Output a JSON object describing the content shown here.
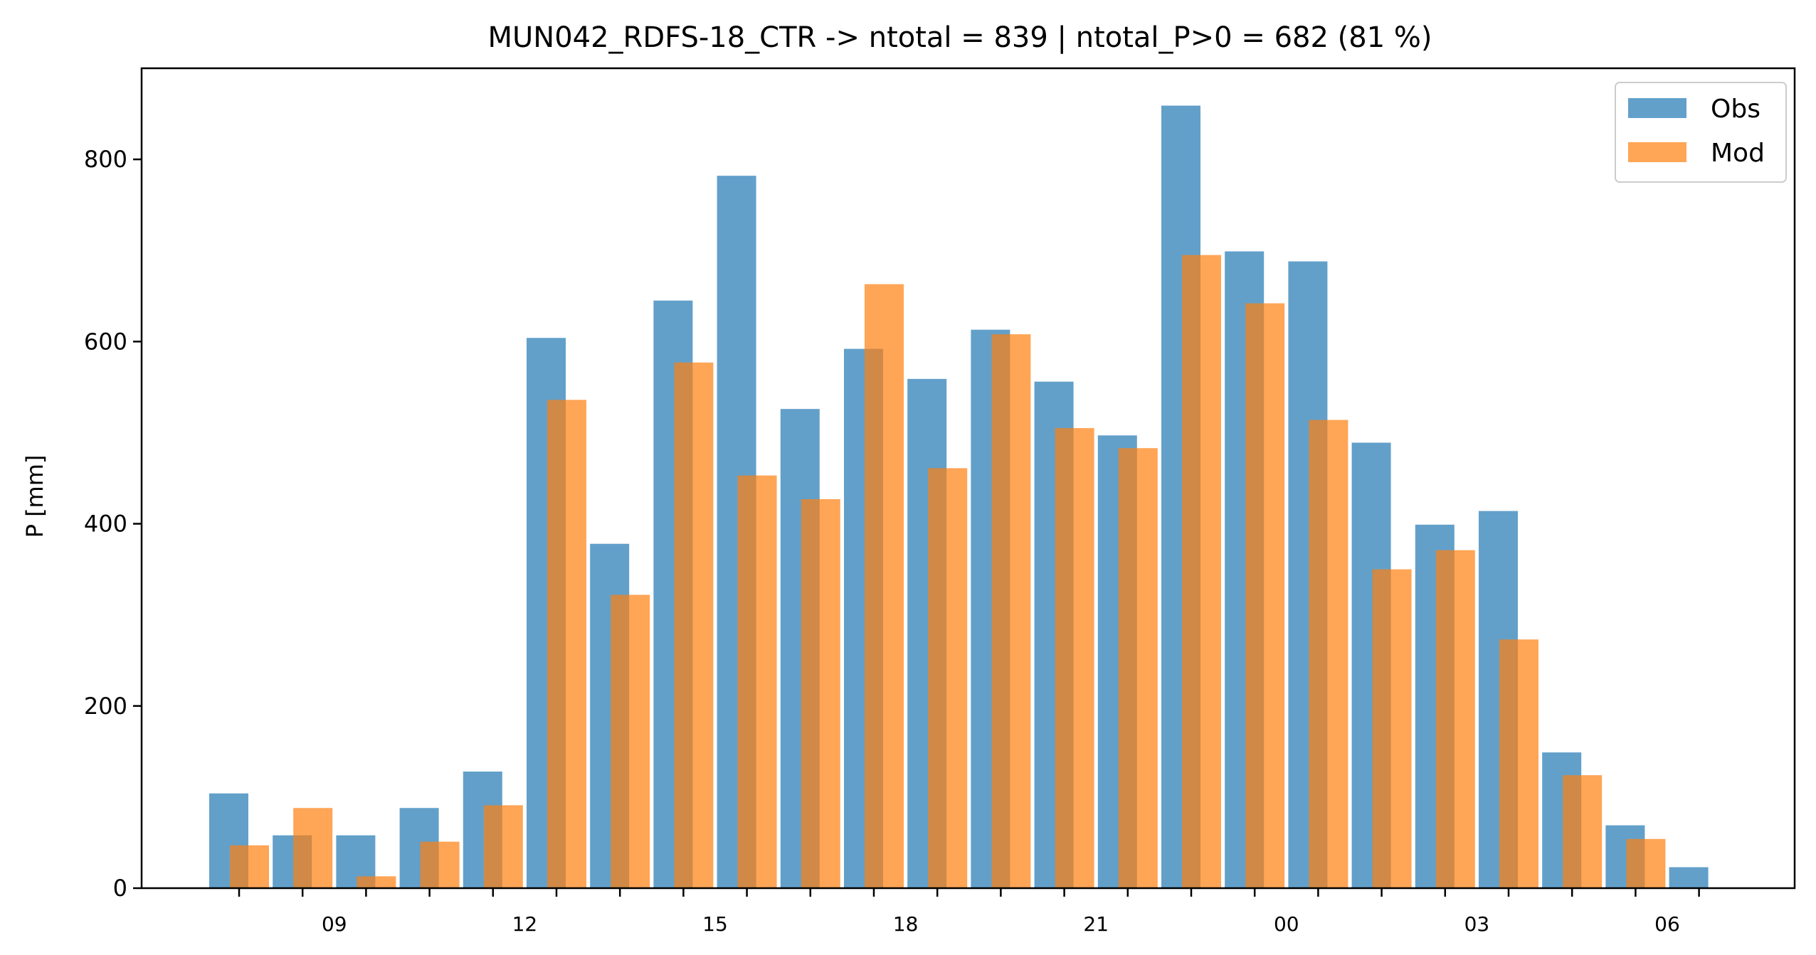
{
  "chart_data": {
    "type": "bar",
    "title": "MUN042_RDFS-18_CTR -> ntotal = 839 | ntotal_P>0 = 682 (81 %)",
    "xlabel": "",
    "ylabel": "P [mm]",
    "ylim": [
      0,
      900
    ],
    "yticks": [
      0,
      200,
      400,
      600,
      800
    ],
    "hours": [
      8,
      9,
      10,
      11,
      12,
      13,
      14,
      15,
      16,
      17,
      18,
      19,
      20,
      21,
      22,
      23,
      0,
      1,
      2,
      3,
      4,
      5,
      6,
      7
    ],
    "xtick_labels": [
      {
        "hour": 9,
        "label": "09"
      },
      {
        "hour": 12,
        "label": "12"
      },
      {
        "hour": 15,
        "label": "15"
      },
      {
        "hour": 18,
        "label": "18"
      },
      {
        "hour": 21,
        "label": "21"
      },
      {
        "hour": 0,
        "label": "00"
      },
      {
        "hour": 3,
        "label": "03"
      },
      {
        "hour": 6,
        "label": "06"
      }
    ],
    "series": [
      {
        "name": "Obs",
        "color": "#1f77b4",
        "values": [
          104,
          58,
          58,
          88,
          128,
          604,
          378,
          645,
          782,
          526,
          592,
          559,
          613,
          556,
          497,
          859,
          699,
          688,
          489,
          399,
          414,
          149,
          69,
          23
        ]
      },
      {
        "name": "Mod",
        "color": "#ff7f0e",
        "values": [
          47,
          88,
          13,
          51,
          91,
          536,
          322,
          577,
          453,
          427,
          663,
          461,
          608,
          505,
          483,
          695,
          642,
          514,
          350,
          371,
          273,
          124,
          54,
          0
        ]
      }
    ],
    "legend": "top-right",
    "grid": false
  }
}
